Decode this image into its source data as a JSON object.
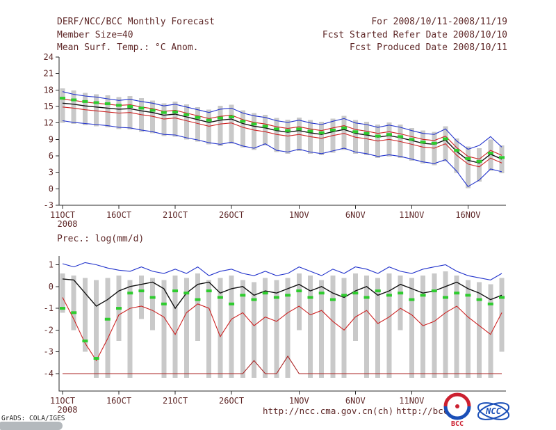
{
  "colors": {
    "text": "#5e2727",
    "axis": "#2a2a2a",
    "bar": "#c9c9c9",
    "blue": "#2233cc",
    "red": "#cc2222",
    "dark_red": "#aa2222",
    "black": "#111111",
    "green": "#2ecc2e",
    "logo_blue": "#1a4fb8",
    "logo_red": "#cc2030"
  },
  "header": {
    "title": "DERF/NCC/BCC Monthly Forecast",
    "member_size": "Member Size=40",
    "for_range": "For 2008/10/11-2008/11/19",
    "refer_date": "Fcst Started Refer Date 2008/10/10",
    "produced_date": "Fcst Produced Date 2008/10/11"
  },
  "footer": {
    "url_ncc": "http://ncc.cma.gov.cn(ch)",
    "url_bcc": "http://bcc.c",
    "credit": "GrADS: COLA/IGES",
    "bcc_logo_text": "BCC",
    "ncc_logo_text": "NCC"
  },
  "chart_data": [
    {
      "type": "line",
      "title": "Mean Surf. Temp.: °C Anom.",
      "ylim": [
        -3,
        24
      ],
      "yticks": [
        24,
        21,
        18,
        15,
        12,
        9,
        6,
        3,
        0,
        -3
      ],
      "n_days": 40,
      "year": "2008",
      "xticks": [
        {
          "day": 0,
          "label": "11OCT"
        },
        {
          "day": 5,
          "label": "16OCT"
        },
        {
          "day": 10,
          "label": "21OCT"
        },
        {
          "day": 15,
          "label": "26OCT"
        },
        {
          "day": 21,
          "label": "1NOV"
        },
        {
          "day": 26,
          "label": "6NOV"
        },
        {
          "day": 31,
          "label": "11NOV"
        },
        {
          "day": 36,
          "label": "16NOV"
        }
      ],
      "bars": {
        "low": [
          12.0,
          11.8,
          11.6,
          11.4,
          11.2,
          10.9,
          10.8,
          10.4,
          10.1,
          9.6,
          9.5,
          9.0,
          8.6,
          8.1,
          7.8,
          8.2,
          7.5,
          7.1,
          7.9,
          6.7,
          6.4,
          6.9,
          6.4,
          6.1,
          6.6,
          7.1,
          6.4,
          6.1,
          5.6,
          5.9,
          5.6,
          5.1,
          4.6,
          4.3,
          5.0,
          2.9,
          0.1,
          1.3,
          3.3,
          2.8
        ],
        "high": [
          18.3,
          17.9,
          17.5,
          17.2,
          17.0,
          16.7,
          16.9,
          16.5,
          16.1,
          15.6,
          15.9,
          15.4,
          14.9,
          14.4,
          15.1,
          15.3,
          14.3,
          13.8,
          13.5,
          12.9,
          12.6,
          13.0,
          12.5,
          12.2,
          12.8,
          13.3,
          12.5,
          12.2,
          11.7,
          12.1,
          11.7,
          11.1,
          10.6,
          10.4,
          11.4,
          9.2,
          7.7,
          7.4,
          9.0,
          7.9
        ]
      },
      "series": [
        {
          "name": "ensemble-max",
          "color": "blue",
          "width": 1.1,
          "values": [
            17.7,
            17.2,
            16.9,
            16.7,
            16.4,
            16.1,
            16.3,
            15.9,
            15.6,
            15.1,
            15.4,
            14.9,
            14.4,
            13.9,
            14.5,
            14.7,
            13.8,
            13.3,
            13.0,
            12.4,
            12.1,
            12.5,
            12.0,
            11.7,
            12.3,
            12.8,
            12.0,
            11.7,
            11.2,
            11.6,
            11.2,
            10.6,
            10.1,
            9.9,
            10.9,
            8.7,
            7.2,
            7.9,
            9.5,
            7.6
          ]
        },
        {
          "name": "ensemble-min",
          "color": "blue",
          "width": 1.1,
          "values": [
            12.4,
            12.1,
            11.9,
            11.7,
            11.5,
            11.2,
            11.1,
            10.7,
            10.4,
            9.9,
            9.8,
            9.3,
            8.9,
            8.4,
            8.1,
            8.5,
            7.8,
            7.4,
            8.2,
            7.0,
            6.7,
            7.2,
            6.7,
            6.4,
            6.9,
            7.4,
            6.7,
            6.4,
            5.9,
            6.2,
            5.9,
            5.4,
            4.9,
            4.6,
            5.3,
            3.2,
            0.4,
            1.6,
            3.6,
            3.1
          ]
        },
        {
          "name": "upper-spread",
          "color": "red",
          "width": 1.1,
          "values": [
            16.3,
            16.1,
            15.8,
            15.6,
            15.4,
            15.2,
            15.3,
            14.9,
            14.6,
            14.1,
            14.3,
            13.8,
            13.3,
            12.8,
            13.2,
            13.4,
            12.6,
            12.1,
            11.8,
            11.3,
            11.0,
            11.3,
            10.9,
            10.6,
            11.1,
            11.5,
            10.8,
            10.5,
            10.1,
            10.4,
            10.0,
            9.5,
            9.0,
            8.8,
            9.6,
            7.5,
            5.9,
            5.4,
            7.0,
            6.1
          ]
        },
        {
          "name": "lower-spread",
          "color": "red",
          "width": 1.1,
          "values": [
            14.9,
            14.7,
            14.4,
            14.2,
            14.0,
            13.8,
            13.9,
            13.5,
            13.2,
            12.7,
            12.9,
            12.4,
            11.9,
            11.4,
            11.8,
            12.0,
            11.2,
            10.7,
            10.4,
            9.9,
            9.6,
            9.9,
            9.5,
            9.2,
            9.7,
            10.1,
            9.4,
            9.1,
            8.7,
            9.0,
            8.6,
            8.1,
            7.6,
            7.4,
            8.2,
            6.1,
            4.5,
            4.0,
            5.6,
            4.7
          ]
        },
        {
          "name": "ensemble-mean",
          "color": "black",
          "width": 1.4,
          "values": [
            15.6,
            15.4,
            15.1,
            14.9,
            14.7,
            14.5,
            14.6,
            14.2,
            13.9,
            13.4,
            13.6,
            13.1,
            12.6,
            12.1,
            12.5,
            12.7,
            11.9,
            11.4,
            11.1,
            10.6,
            10.3,
            10.6,
            10.2,
            9.9,
            10.4,
            10.8,
            10.1,
            9.8,
            9.4,
            9.7,
            9.3,
            8.8,
            8.3,
            8.1,
            8.9,
            6.8,
            5.2,
            4.7,
            6.3,
            5.4
          ]
        },
        {
          "name": "reference-green",
          "color": "green",
          "width": 4,
          "style": "ticks",
          "values": [
            16.5,
            16.2,
            15.9,
            15.7,
            15.5,
            15.2,
            15.0,
            14.7,
            14.3,
            13.9,
            14.0,
            13.5,
            13.0,
            12.5,
            12.9,
            13.1,
            12.3,
            11.8,
            11.4,
            10.9,
            10.6,
            10.9,
            10.5,
            10.2,
            10.7,
            11.1,
            10.4,
            10.1,
            9.6,
            9.9,
            9.5,
            9.0,
            8.5,
            8.3,
            9.1,
            7.0,
            5.5,
            5.0,
            6.5,
            5.7
          ]
        }
      ]
    },
    {
      "type": "line",
      "title": "Prec.: log(mm/d)",
      "ylim": [
        -4,
        1
      ],
      "yticks": [
        1,
        0,
        -1,
        -2,
        -3,
        -4
      ],
      "n_days": 40,
      "year": "2008",
      "xticks": [
        {
          "day": 0,
          "label": "11OCT"
        },
        {
          "day": 5,
          "label": "16OCT"
        },
        {
          "day": 10,
          "label": "21OCT"
        },
        {
          "day": 15,
          "label": "26OCT"
        },
        {
          "day": 21,
          "label": "1NOV"
        },
        {
          "day": 26,
          "label": "6NOV"
        },
        {
          "day": 31,
          "label": "11NOV"
        }
      ],
      "bars": {
        "low": [
          -1.2,
          -2.0,
          -3.0,
          -4.2,
          -4.2,
          -2.5,
          -4.2,
          -1.5,
          -2.0,
          -4.2,
          -4.2,
          -4.2,
          -2.5,
          -4.2,
          -4.2,
          -4.2,
          -4.2,
          -4.2,
          -4.2,
          -4.2,
          -4.2,
          -2.0,
          -4.2,
          -4.2,
          -4.2,
          -4.2,
          -2.5,
          -4.2,
          -4.2,
          -4.2,
          -2.0,
          -4.2,
          -4.2,
          -4.2,
          -4.2,
          -4.2,
          -4.2,
          -4.2,
          -4.2,
          -3.0
        ],
        "high": [
          0.6,
          0.5,
          0.4,
          0.3,
          0.4,
          0.5,
          0.3,
          0.5,
          0.4,
          0.3,
          0.5,
          0.4,
          0.6,
          0.3,
          0.4,
          0.5,
          0.3,
          0.2,
          0.4,
          0.3,
          0.4,
          0.6,
          0.5,
          0.3,
          0.5,
          0.4,
          0.6,
          0.5,
          0.4,
          0.6,
          0.5,
          0.4,
          0.5,
          0.6,
          0.7,
          0.5,
          0.3,
          0.2,
          0.1,
          0.4
        ]
      },
      "series": [
        {
          "name": "ensemble-max",
          "color": "blue",
          "width": 1.1,
          "values": [
            1.05,
            0.9,
            1.1,
            1.0,
            0.85,
            0.75,
            0.7,
            0.9,
            0.7,
            0.6,
            0.8,
            0.6,
            0.9,
            0.5,
            0.7,
            0.8,
            0.6,
            0.5,
            0.7,
            0.5,
            0.6,
            0.9,
            0.7,
            0.5,
            0.8,
            0.6,
            0.9,
            0.8,
            0.6,
            0.9,
            0.7,
            0.6,
            0.8,
            0.9,
            1.0,
            0.7,
            0.5,
            0.4,
            0.3,
            0.6
          ]
        },
        {
          "name": "lower-spread",
          "color": "red",
          "width": 1.1,
          "values": [
            -0.5,
            -1.5,
            -2.6,
            -3.4,
            -2.4,
            -1.3,
            -1.0,
            -0.9,
            -1.1,
            -1.4,
            -2.2,
            -1.2,
            -0.8,
            -1.0,
            -2.3,
            -1.5,
            -1.2,
            -1.8,
            -1.4,
            -1.6,
            -1.2,
            -0.9,
            -1.3,
            -1.1,
            -1.6,
            -2.0,
            -1.4,
            -1.1,
            -1.7,
            -1.4,
            -1.0,
            -1.3,
            -1.8,
            -1.6,
            -1.2,
            -0.9,
            -1.4,
            -1.8,
            -2.2,
            -1.2
          ]
        },
        {
          "name": "ensemble-min",
          "color": "dark_red",
          "width": 1.1,
          "values": [
            -4,
            -4,
            -4,
            -4,
            -4,
            -4,
            -4,
            -4,
            -4,
            -4,
            -4,
            -4,
            -4,
            -4,
            -4,
            -4,
            -4,
            -3.4,
            -4,
            -4,
            -3.2,
            -4,
            -4,
            -4,
            -4,
            -4,
            -4,
            -4,
            -4,
            -4,
            -4,
            -4,
            -4,
            -4,
            -4,
            -4,
            -4,
            -4,
            -4,
            -4
          ]
        },
        {
          "name": "ensemble-mean",
          "color": "black",
          "width": 1.4,
          "values": [
            0.35,
            0.3,
            -0.3,
            -0.9,
            -0.6,
            -0.2,
            0.0,
            0.1,
            0.2,
            -0.1,
            -1.0,
            -0.3,
            0.1,
            0.2,
            -0.3,
            -0.1,
            0.0,
            -0.4,
            -0.2,
            -0.3,
            -0.1,
            0.1,
            -0.2,
            0.0,
            -0.3,
            -0.5,
            -0.2,
            0.0,
            -0.4,
            -0.2,
            0.1,
            -0.1,
            -0.3,
            -0.2,
            0.0,
            0.2,
            -0.1,
            -0.3,
            -0.6,
            -0.4
          ]
        },
        {
          "name": "reference-green",
          "color": "green",
          "width": 4,
          "style": "ticks",
          "values": [
            -1.0,
            -1.2,
            -2.5,
            -3.3,
            -1.5,
            -1.0,
            -0.3,
            -0.2,
            -0.5,
            -0.8,
            -0.2,
            -0.3,
            -0.6,
            -0.2,
            -0.5,
            -0.8,
            -0.4,
            -0.6,
            -0.3,
            -0.5,
            -0.4,
            -0.2,
            -0.5,
            -0.3,
            -0.6,
            -0.4,
            -0.3,
            -0.5,
            -0.2,
            -0.4,
            -0.3,
            -0.6,
            -0.4,
            -0.2,
            -0.5,
            -0.3,
            -0.4,
            -0.6,
            -0.8,
            -0.5
          ]
        }
      ]
    }
  ]
}
